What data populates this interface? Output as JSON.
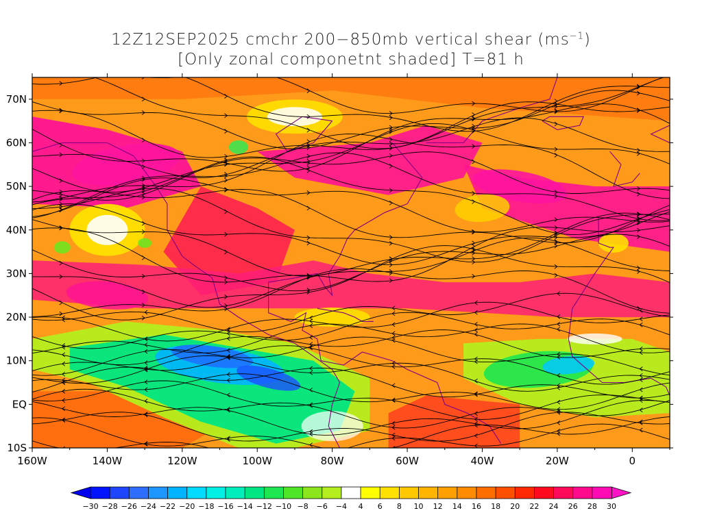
{
  "title": {
    "line1_prefix": "12Z12SEP2025 cmchr 200−850mb vertical shear (ms",
    "line1_sup": "−1",
    "line1_suffix": ")",
    "line2": "[Only zonal componetnt shaded] T=81 h"
  },
  "map": {
    "lon_range": [
      -160,
      10
    ],
    "lat_range": [
      -10,
      75
    ],
    "lat_labels": [
      {
        "lat": 70,
        "text": "70N"
      },
      {
        "lat": 60,
        "text": "60N"
      },
      {
        "lat": 50,
        "text": "50N"
      },
      {
        "lat": 40,
        "text": "40N"
      },
      {
        "lat": 30,
        "text": "30N"
      },
      {
        "lat": 20,
        "text": "20N"
      },
      {
        "lat": 10,
        "text": "10N"
      },
      {
        "lat": 0,
        "text": "EQ"
      },
      {
        "lat": -10,
        "text": "10S"
      }
    ],
    "lon_labels": [
      {
        "lon": -160,
        "text": "160W"
      },
      {
        "lon": -140,
        "text": "140W"
      },
      {
        "lon": -120,
        "text": "120W"
      },
      {
        "lon": -100,
        "text": "100W"
      },
      {
        "lon": -80,
        "text": "80W"
      },
      {
        "lon": -60,
        "text": "60W"
      },
      {
        "lon": -40,
        "text": "40W"
      },
      {
        "lon": -20,
        "text": "20W"
      },
      {
        "lon": 0,
        "text": "0"
      }
    ]
  },
  "colorbar": {
    "labels": [
      "-30",
      "-28",
      "-26",
      "-24",
      "-22",
      "-20",
      "-18",
      "-16",
      "-14",
      "-12",
      "-10",
      "-8",
      "-6",
      "-4",
      "4",
      "6",
      "8",
      "10",
      "12",
      "14",
      "16",
      "18",
      "20",
      "22",
      "24",
      "26",
      "28",
      "30"
    ],
    "colors": [
      "#0014ff",
      "#1e46ff",
      "#2d6eff",
      "#1e96ff",
      "#00b4ff",
      "#00dcff",
      "#00f0e6",
      "#00eebb",
      "#00e682",
      "#1ee650",
      "#50e628",
      "#8ce61e",
      "#b4ee1e",
      "#ffffff",
      "#ffff00",
      "#ffe100",
      "#ffc800",
      "#ffb400",
      "#ffa000",
      "#ff8c00",
      "#ff6e00",
      "#ff5000",
      "#ff2800",
      "#ff0a1e",
      "#ff0a5a",
      "#ff0a8c",
      "#ff0ab4"
    ],
    "low_color": "#0000f0",
    "high_color": "#ff14c8"
  },
  "colors": {
    "streamline": "#000000",
    "coast": "#800080"
  }
}
